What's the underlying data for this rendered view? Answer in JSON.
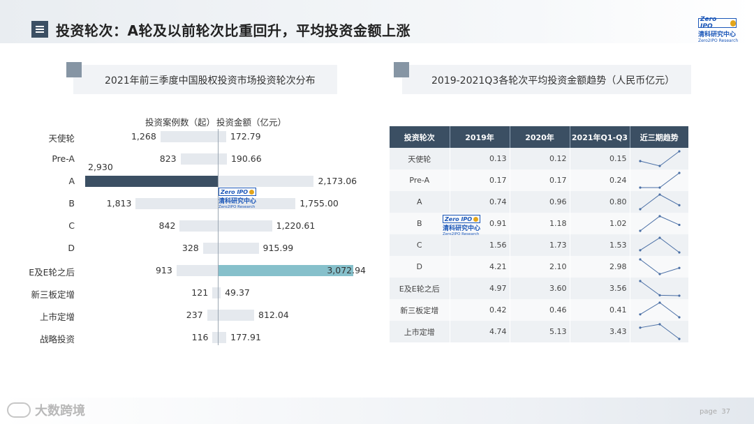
{
  "page": {
    "title": "投资轮次：A轮及以前轮次比重回升，平均投资金额上涨",
    "page_label": "page",
    "page_number": "37",
    "footer_brand": "大数跨境"
  },
  "logo": {
    "mark_text": "Zero IPO",
    "name_cn": "清科研究中心",
    "name_en": "Zero2IPO Research"
  },
  "colors": {
    "a_bar": "#3b4f63",
    "highlight_bar": "#86c0cb",
    "light_bar": "#e5e9ee",
    "table_header": "#3b4f63"
  },
  "left_panel": {
    "title": "2021年前三季度中国股权投资市场投资轮次分布",
    "col_head_cases": "投资案例数（起）",
    "col_head_amount": "投资金额（亿元）"
  },
  "right_panel": {
    "title": "2019-2021Q3各轮次平均投资金额趋势（人民币亿元）"
  },
  "chart_data": [
    {
      "type": "bar",
      "title": "2021年前三季度中国股权投资市场投资轮次分布",
      "categories": [
        "天使轮",
        "Pre-A",
        "A",
        "B",
        "C",
        "D",
        "E及E轮之后",
        "新三板定增",
        "上市定增",
        "战略投资"
      ],
      "series": [
        {
          "name": "投资案例数（起）",
          "values": [
            1268,
            823,
            2930,
            1813,
            842,
            328,
            913,
            121,
            237,
            116
          ],
          "labels": [
            "1,268",
            "823",
            "2,930",
            "1,813",
            "842",
            "328",
            "913",
            "121",
            "237",
            "116"
          ]
        },
        {
          "name": "投资金额（亿元）",
          "values": [
            172.79,
            190.66,
            2173.06,
            1755.0,
            1220.61,
            915.99,
            3072.94,
            49.37,
            812.04,
            177.91
          ],
          "labels": [
            "172.79",
            "190.66",
            "2,173.06",
            "1,755.00",
            "1,220.61",
            "915.99",
            "3,072.94",
            "49.37",
            "812.04",
            "177.91"
          ]
        }
      ]
    },
    {
      "type": "table",
      "title": "2019-2021Q3各轮次平均投资金额趋势（人民币亿元）",
      "columns": [
        "投资轮次",
        "2019年",
        "2020年",
        "2021年Q1-Q3",
        "近三期趋势"
      ],
      "rows": [
        {
          "label": "天使轮",
          "values": [
            0.13,
            0.12,
            0.15
          ],
          "text": [
            "0.13",
            "0.12",
            "0.15"
          ]
        },
        {
          "label": "Pre-A",
          "values": [
            0.17,
            0.17,
            0.24
          ],
          "text": [
            "0.17",
            "0.17",
            "0.24"
          ]
        },
        {
          "label": "A",
          "values": [
            0.74,
            0.96,
            0.8
          ],
          "text": [
            "0.74",
            "0.96",
            "0.80"
          ]
        },
        {
          "label": "B",
          "values": [
            0.91,
            1.18,
            1.02
          ],
          "text": [
            "0.91",
            "1.18",
            "1.02"
          ]
        },
        {
          "label": "C",
          "values": [
            1.56,
            1.73,
            1.53
          ],
          "text": [
            "1.56",
            "1.73",
            "1.53"
          ]
        },
        {
          "label": "D",
          "values": [
            4.21,
            2.1,
            2.98
          ],
          "text": [
            "4.21",
            "2.10",
            "2.98"
          ]
        },
        {
          "label": "E及E轮之后",
          "values": [
            4.97,
            3.6,
            3.56
          ],
          "text": [
            "4.97",
            "3.60",
            "3.56"
          ]
        },
        {
          "label": "新三板定增",
          "values": [
            0.42,
            0.46,
            0.41
          ],
          "text": [
            "0.42",
            "0.46",
            "0.41"
          ]
        },
        {
          "label": "上市定增",
          "values": [
            4.74,
            5.13,
            3.43
          ],
          "text": [
            "4.74",
            "5.13",
            "3.43"
          ]
        }
      ]
    }
  ]
}
